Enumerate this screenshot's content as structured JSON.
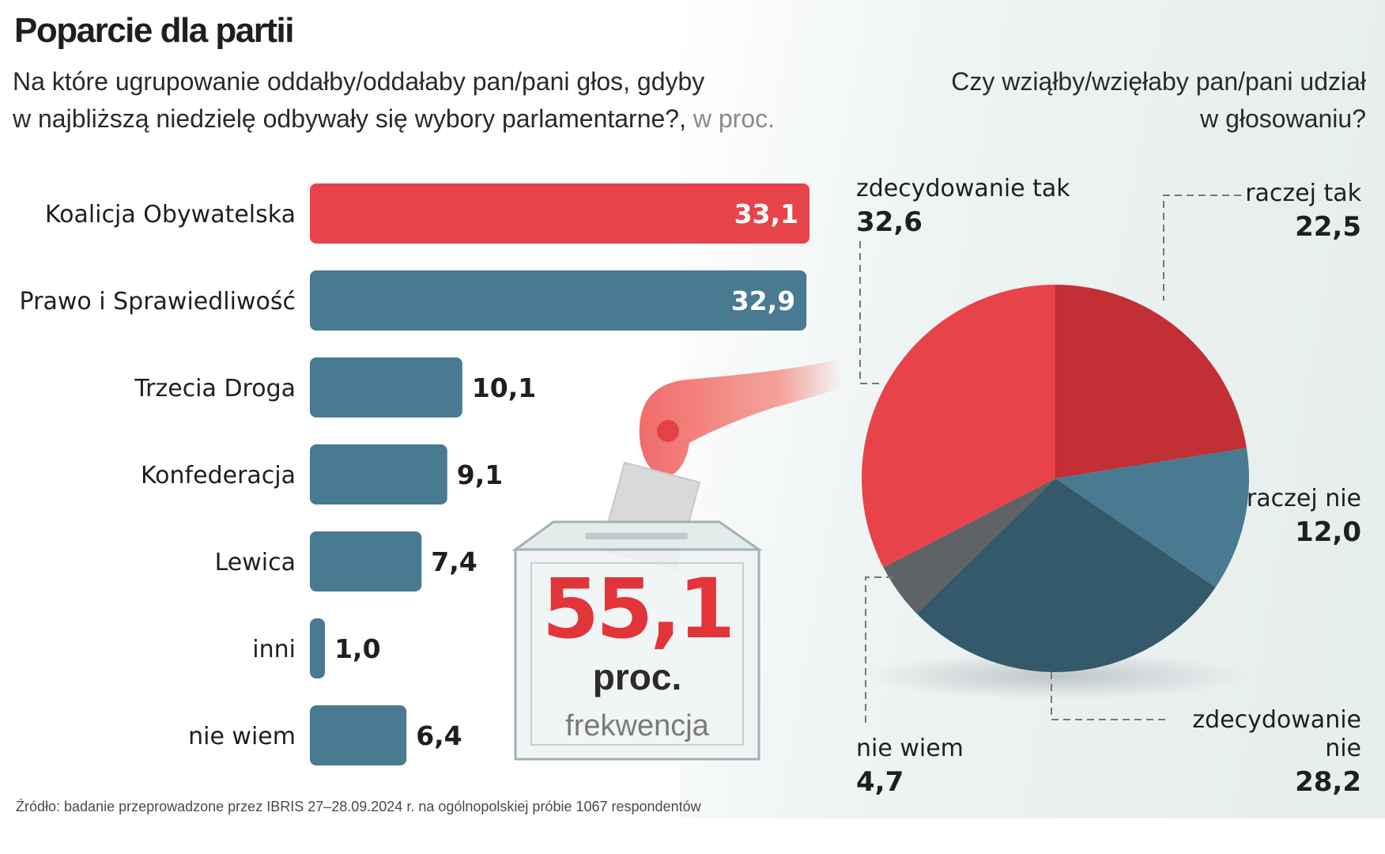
{
  "title": "Poparcie dla partii",
  "subtitle_line1": "Na które ugrupowanie oddałby/oddałaby pan/pani głos, gdyby",
  "subtitle_line2": "w najbliższą niedzielę odbywały się wybory parlamentarne?,",
  "subtitle_unit": "w proc.",
  "pie_question_line1": "Czy wziąłby/wzięłaby pan/pani udział",
  "pie_question_line2": "w głosowaniu?",
  "source": "Źródło: badanie przeprowadzone przez IBRIS 27–28.09.2024 r. na ogólnopolskiej próbie 1067 respondentów",
  "turnout": {
    "value": "55,1",
    "unit": "proc.",
    "label": "frekwencja"
  },
  "colors": {
    "red": "#e8434a",
    "dark_red": "#c22f34",
    "steel_blue": "#487a91",
    "slate": "#34596b",
    "gray": "#5f6266"
  },
  "chart_data": [
    {
      "type": "bar",
      "orientation": "horizontal",
      "title": "Poparcie dla partii",
      "unit": "w proc.",
      "categories": [
        "Koalicja Obywatelska",
        "Prawo i Sprawiedliwość",
        "Trzecia Droga",
        "Konfederacja",
        "Lewica",
        "inni",
        "nie wiem"
      ],
      "values": [
        33.1,
        32.9,
        10.1,
        9.1,
        7.4,
        1.0,
        6.4
      ],
      "value_labels": [
        "33,1",
        "32,9",
        "10,1",
        "9,1",
        "7,4",
        "1,0",
        "6,4"
      ],
      "bar_colors": [
        "#e8434a",
        "#487a91",
        "#487a91",
        "#487a91",
        "#487a91",
        "#487a91",
        "#487a91"
      ],
      "xlim": [
        0,
        33.1
      ]
    },
    {
      "type": "pie",
      "title": "Czy wziąłby/wzięłaby pan/pani udział w głosowaniu?",
      "start_direction": "top",
      "order": "clockwise",
      "slices": [
        {
          "label": "raczej tak",
          "value": 22.5,
          "value_label": "22,5",
          "color": "#c22f34"
        },
        {
          "label": "raczej nie",
          "value": 12.0,
          "value_label": "12,0",
          "color": "#487a91"
        },
        {
          "label": "zdecydowanie nie",
          "value": 28.2,
          "value_label": "28,2",
          "color": "#34596b"
        },
        {
          "label": "nie wiem",
          "value": 4.7,
          "value_label": "4,7",
          "color": "#5f6266"
        },
        {
          "label": "zdecydowanie tak",
          "value": 32.6,
          "value_label": "32,6",
          "color": "#e8434a"
        }
      ]
    }
  ]
}
